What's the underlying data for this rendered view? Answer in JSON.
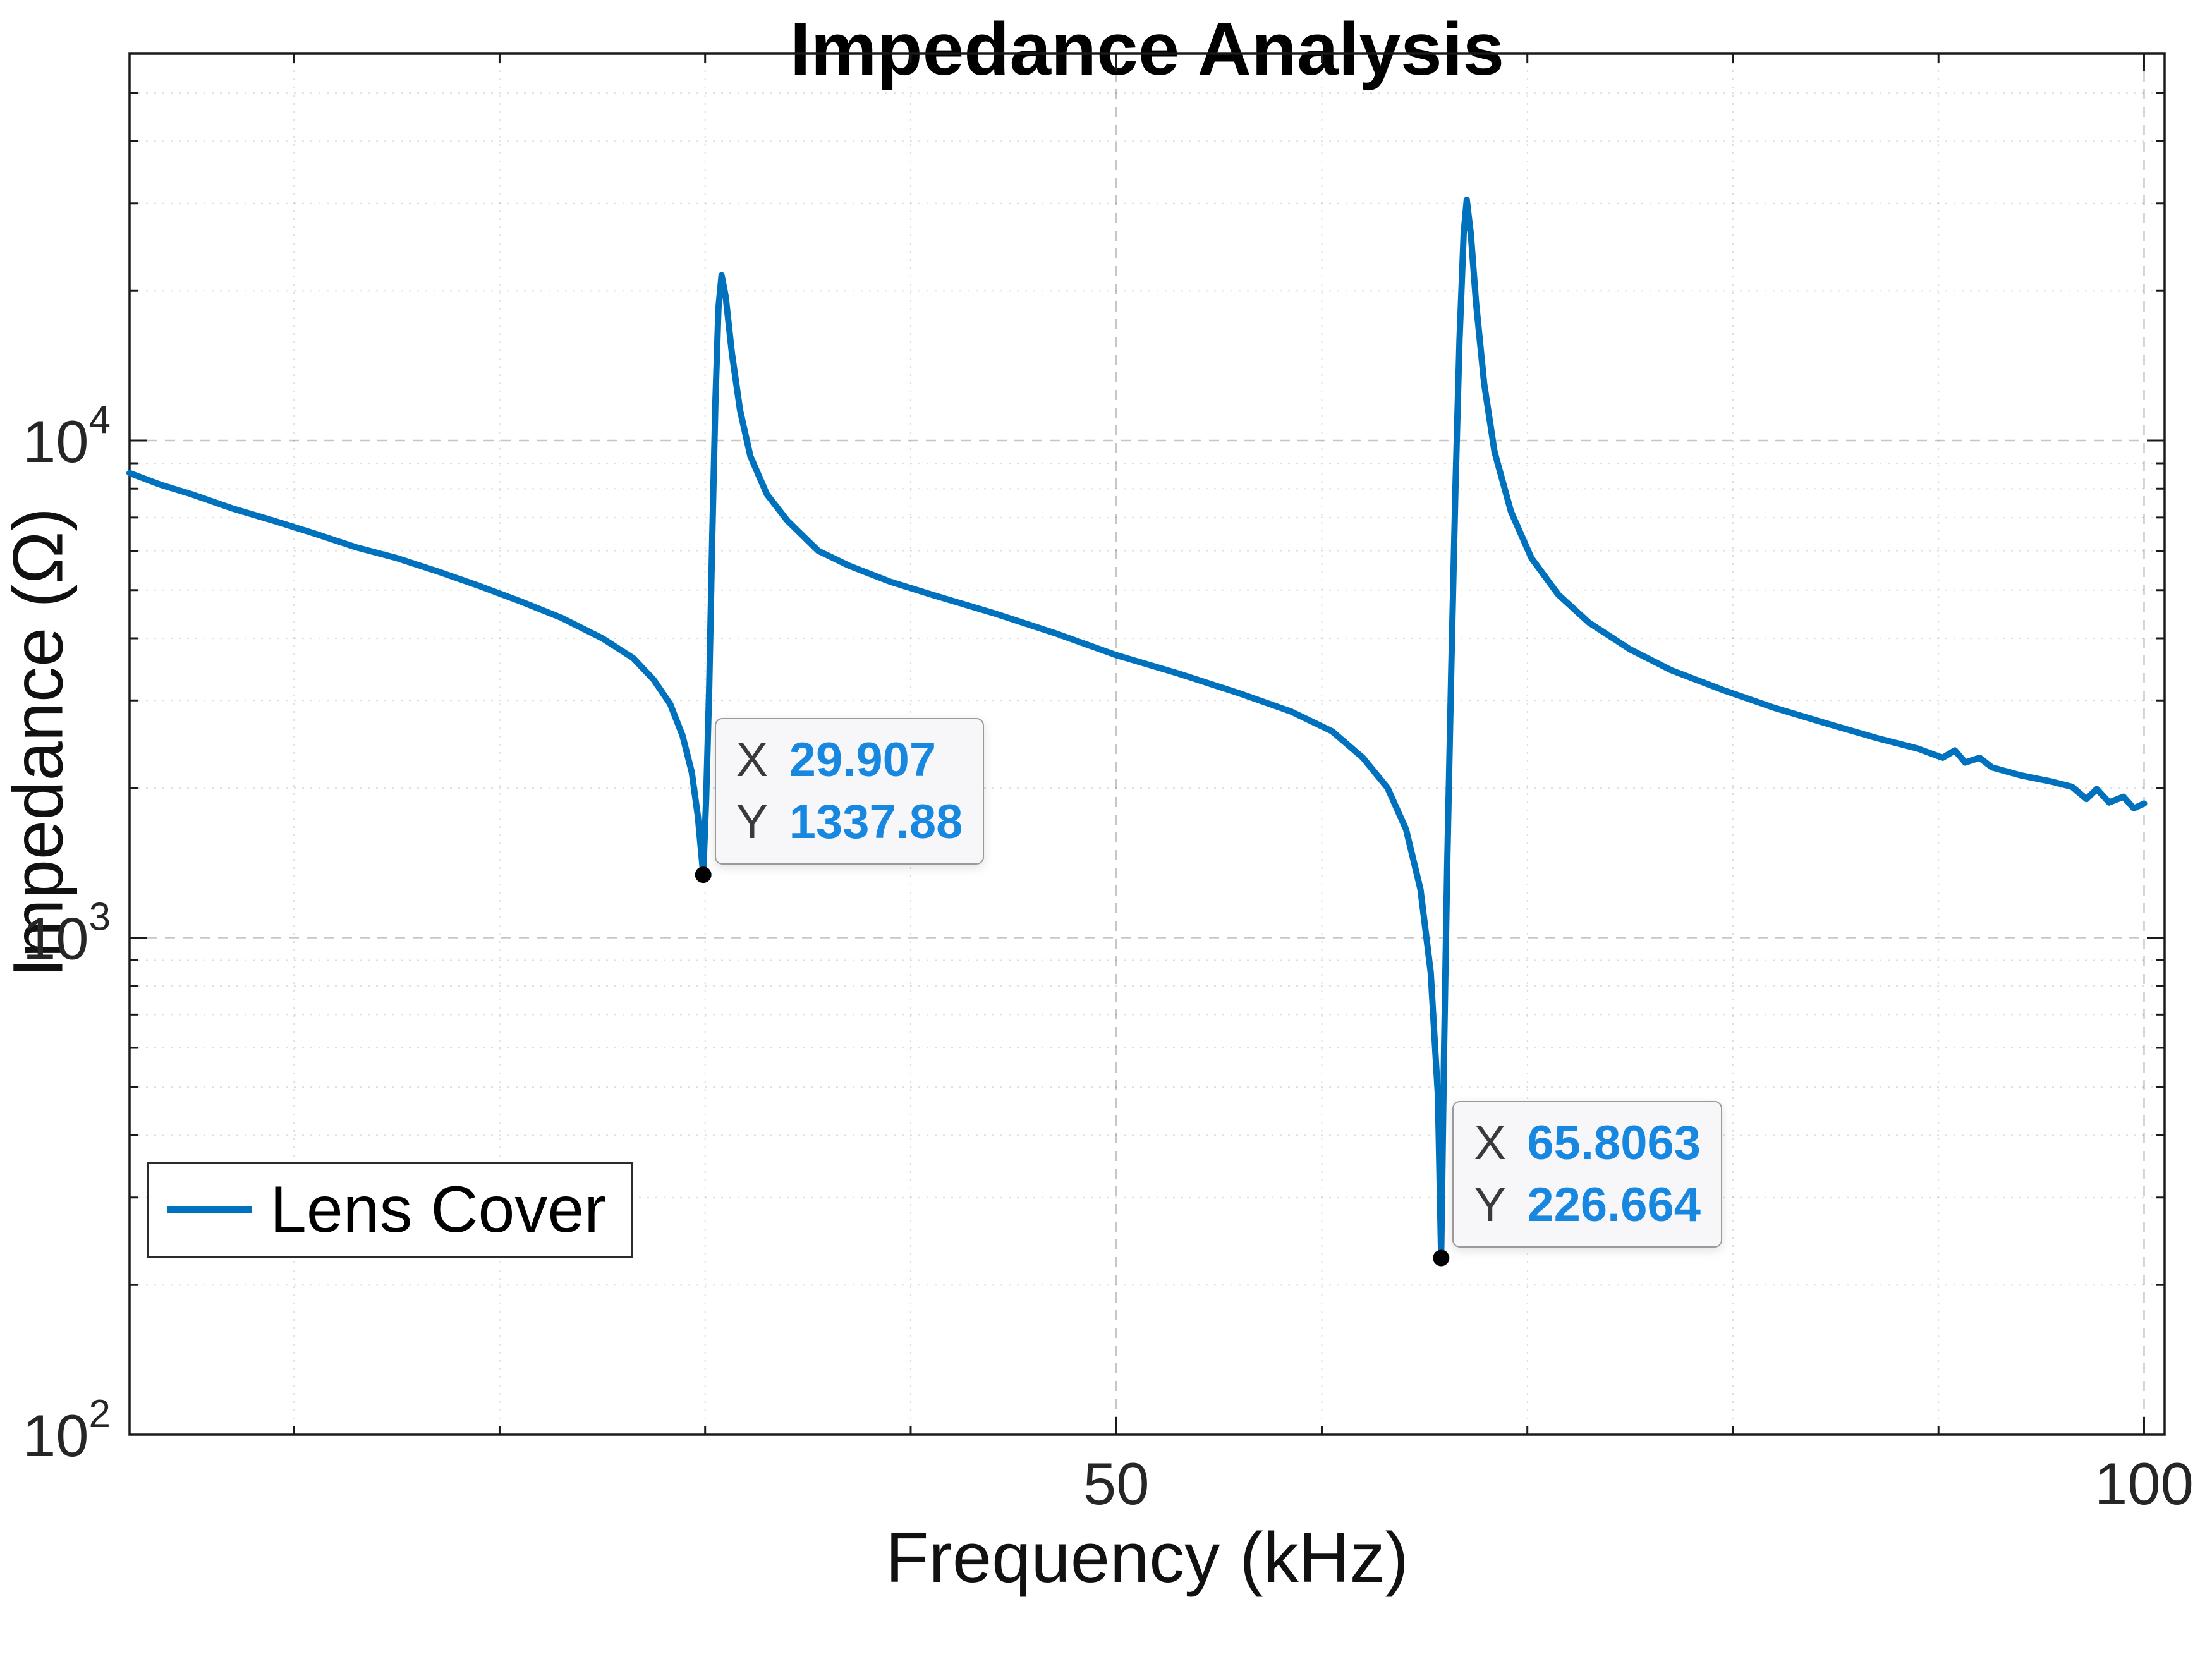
{
  "chart_data": {
    "type": "line",
    "title": "Impedance Analysis",
    "xlabel": "Frequency (kHz)",
    "ylabel": "Impedance (Ω)",
    "xscale": "linear",
    "yscale": "log",
    "xlim": [
      2,
      101
    ],
    "ylim": [
      100,
      60000
    ],
    "grid": {
      "x_major": [
        50,
        100
      ],
      "x_minor": [
        10,
        20,
        30,
        40,
        60,
        70,
        80,
        90
      ],
      "y_major": [
        1000,
        10000
      ],
      "y_minor": [
        200,
        300,
        400,
        500,
        600,
        700,
        800,
        900,
        2000,
        3000,
        4000,
        5000,
        6000,
        7000,
        8000,
        9000,
        20000,
        30000,
        40000,
        50000
      ]
    },
    "xticks": [
      {
        "value": 50,
        "label": "50"
      },
      {
        "value": 100,
        "label": "100"
      }
    ],
    "yticks": [
      {
        "value": 100,
        "base": "10",
        "exp": "2"
      },
      {
        "value": 1000,
        "base": "10",
        "exp": "3"
      },
      {
        "value": 10000,
        "base": "10",
        "exp": "4"
      }
    ],
    "series": [
      {
        "name": "Lens Cover",
        "color": "#0072BD",
        "x": [
          2,
          3.5,
          5,
          7,
          9,
          11,
          13,
          15,
          17,
          19,
          21,
          23,
          25,
          26.5,
          27.5,
          28.3,
          28.9,
          29.35,
          29.65,
          29.907,
          30.05,
          30.2,
          30.35,
          30.5,
          30.65,
          30.8,
          31.0,
          31.3,
          31.7,
          32.2,
          33,
          34,
          35.5,
          37,
          39,
          41,
          44,
          47,
          50,
          53,
          56,
          58.5,
          60.5,
          62,
          63.2,
          64.1,
          64.8,
          65.3,
          65.65,
          65.8063,
          65.95,
          66.1,
          66.3,
          66.5,
          66.7,
          66.9,
          67.05,
          67.25,
          67.5,
          67.9,
          68.4,
          69.2,
          70.2,
          71.5,
          73,
          75,
          77,
          79.5,
          82,
          84.5,
          87,
          89,
          90.2,
          90.8,
          91.3,
          92,
          92.6,
          94,
          95.5,
          96.5,
          97.2,
          97.7,
          98.3,
          99,
          99.5,
          100
        ],
        "y": [
          8600,
          8150,
          7800,
          7300,
          6900,
          6500,
          6100,
          5800,
          5450,
          5100,
          4750,
          4400,
          4000,
          3650,
          3300,
          2950,
          2550,
          2150,
          1750,
          1337.88,
          1900,
          3200,
          6500,
          12000,
          18500,
          21500,
          19500,
          15000,
          11500,
          9300,
          7800,
          6900,
          6000,
          5600,
          5200,
          4900,
          4500,
          4100,
          3700,
          3400,
          3100,
          2850,
          2600,
          2300,
          2000,
          1650,
          1250,
          850,
          480,
          226.664,
          600,
          1400,
          3500,
          8000,
          16000,
          26000,
          30500,
          26000,
          19000,
          13000,
          9500,
          7200,
          5800,
          4900,
          4300,
          3800,
          3450,
          3150,
          2900,
          2700,
          2520,
          2400,
          2300,
          2380,
          2250,
          2300,
          2200,
          2120,
          2060,
          2010,
          1900,
          1990,
          1870,
          1920,
          1820,
          1860
        ]
      }
    ],
    "datatips": [
      {
        "x": 29.907,
        "y": 1337.88,
        "x_label": "X",
        "y_label": "Y",
        "x_text": "29.907",
        "y_text": "1337.88"
      },
      {
        "x": 65.8063,
        "y": 226.664,
        "x_label": "X",
        "y_label": "Y",
        "x_text": "65.8063",
        "y_text": "226.664"
      }
    ],
    "legend": {
      "position": "southwest",
      "entries": [
        "Lens Cover"
      ]
    },
    "colors": {
      "line": "#0072BD",
      "datatip_value": "#1787e0",
      "datatip_label": "#3a3a3a",
      "marker": "#000000",
      "axis": "#1a1a1a"
    }
  }
}
